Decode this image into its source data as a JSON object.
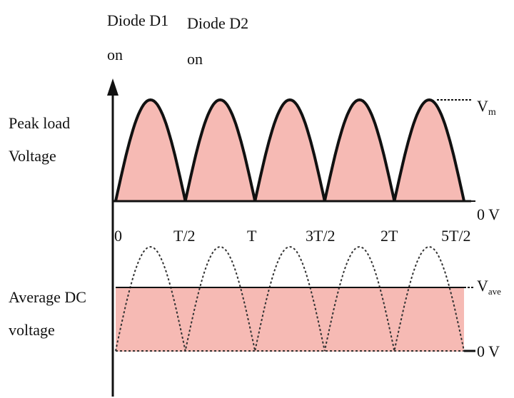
{
  "labels": {
    "diode_d1": [
      "Diode D1",
      "on"
    ],
    "diode_d2": [
      "Diode D2",
      "on"
    ],
    "peak_load": [
      "Peak load",
      "Voltage"
    ],
    "average_dc": [
      "Average DC",
      "voltage"
    ],
    "vm_main": "V",
    "vm_sub": "m",
    "vave_main": "V",
    "vave_sub": "ave",
    "zero_top": "0 V",
    "zero_bottom": "0 V"
  },
  "ticks": [
    "0",
    "T/2",
    "T",
    "3T/2",
    "2T",
    "5T/2"
  ],
  "colors": {
    "fill": "#f6bab4",
    "line": "#111111",
    "dotted": "#333333"
  }
}
